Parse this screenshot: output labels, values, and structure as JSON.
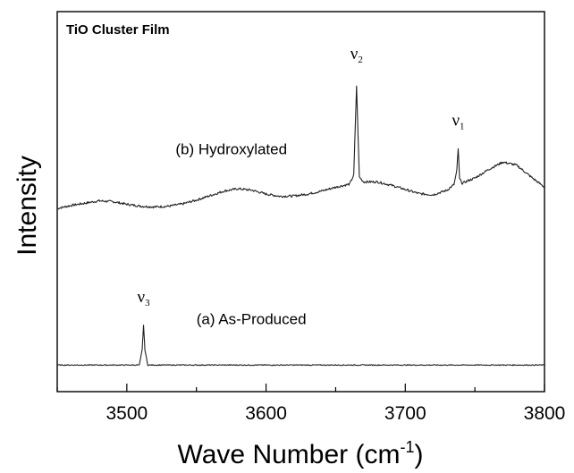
{
  "chart_data": {
    "type": "line",
    "title": "TiO Cluster Film",
    "xlabel": "Wave Number (cm",
    "xlabel_sup": "-1",
    "xlabel_close": ")",
    "ylabel": "Intensity",
    "xlim": [
      3450,
      3800
    ],
    "ylim": [
      0,
      1
    ],
    "xticks": [
      3500,
      3600,
      3700,
      3800
    ],
    "xtick_labels": [
      "3500",
      "3600",
      "3700",
      "3800"
    ],
    "yticks_shown": false,
    "grid": false,
    "series": [
      {
        "name": "(b) Hydroxylated",
        "x": [
          3450,
          3460,
          3470,
          3480,
          3490,
          3500,
          3510,
          3520,
          3530,
          3540,
          3550,
          3560,
          3570,
          3580,
          3590,
          3600,
          3610,
          3620,
          3630,
          3640,
          3650,
          3655,
          3660,
          3663,
          3665,
          3667,
          3670,
          3680,
          3690,
          3700,
          3710,
          3720,
          3730,
          3735,
          3737,
          3738,
          3739,
          3741,
          3745,
          3750,
          3760,
          3770,
          3780,
          3790,
          3800
        ],
        "y": [
          0.482,
          0.49,
          0.496,
          0.502,
          0.5,
          0.493,
          0.488,
          0.486,
          0.488,
          0.494,
          0.504,
          0.516,
          0.528,
          0.534,
          0.53,
          0.52,
          0.514,
          0.515,
          0.52,
          0.528,
          0.538,
          0.542,
          0.546,
          0.57,
          0.805,
          0.565,
          0.552,
          0.552,
          0.543,
          0.532,
          0.521,
          0.518,
          0.53,
          0.545,
          0.58,
          0.64,
          0.56,
          0.548,
          0.555,
          0.562,
          0.585,
          0.604,
          0.596,
          0.566,
          0.538
        ]
      },
      {
        "name": "(a) As-Produced",
        "x": [
          3450,
          3500,
          3509,
          3511,
          3512,
          3513,
          3515,
          3550,
          3600,
          3650,
          3700,
          3750,
          3800
        ],
        "y": [
          0.07,
          0.07,
          0.07,
          0.11,
          0.175,
          0.11,
          0.07,
          0.07,
          0.07,
          0.07,
          0.07,
          0.07,
          0.07
        ]
      }
    ],
    "peak_labels": [
      {
        "symbol": "ν",
        "sub": "2",
        "x": 3665,
        "y": 0.875
      },
      {
        "symbol": "ν",
        "sub": "1",
        "x": 3738,
        "y": 0.7
      },
      {
        "symbol": "ν",
        "sub": "3",
        "x": 3512,
        "y": 0.235
      }
    ],
    "annotations": [
      {
        "text": "(b) Hydroxylated",
        "x": 3535,
        "y": 0.625
      },
      {
        "text": "(a) As-Produced",
        "x": 3550,
        "y": 0.178
      }
    ],
    "line_color": "#222222",
    "axis_color": "#000000"
  }
}
